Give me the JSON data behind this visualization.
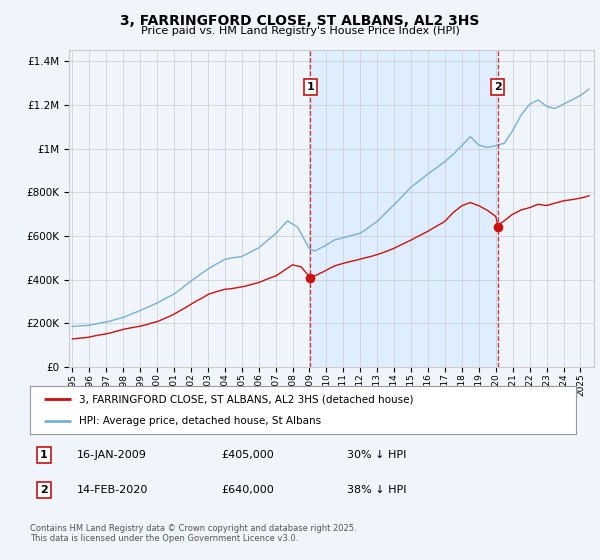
{
  "title": "3, FARRINGFORD CLOSE, ST ALBANS, AL2 3HS",
  "subtitle": "Price paid vs. HM Land Registry's House Price Index (HPI)",
  "legend_label_red": "3, FARRINGFORD CLOSE, ST ALBANS, AL2 3HS (detached house)",
  "legend_label_blue": "HPI: Average price, detached house, St Albans",
  "footnote": "Contains HM Land Registry data © Crown copyright and database right 2025.\nThis data is licensed under the Open Government Licence v3.0.",
  "marker1_date": "16-JAN-2009",
  "marker1_price": "£405,000",
  "marker1_hpi": "30% ↓ HPI",
  "marker2_date": "14-FEB-2020",
  "marker2_price": "£640,000",
  "marker2_hpi": "38% ↓ HPI",
  "vline1_x": 2009.04,
  "vline2_x": 2020.12,
  "marker1_y_red": 405000,
  "marker2_y_red": 640000,
  "ylim": [
    0,
    1450000
  ],
  "xlim_start": 1994.8,
  "xlim_end": 2025.8,
  "background_color": "#f0f4fb",
  "span_color": "#ddeeff",
  "red_color": "#cc1111",
  "blue_color": "#7ab0d4",
  "grid_color": "#cccccc"
}
